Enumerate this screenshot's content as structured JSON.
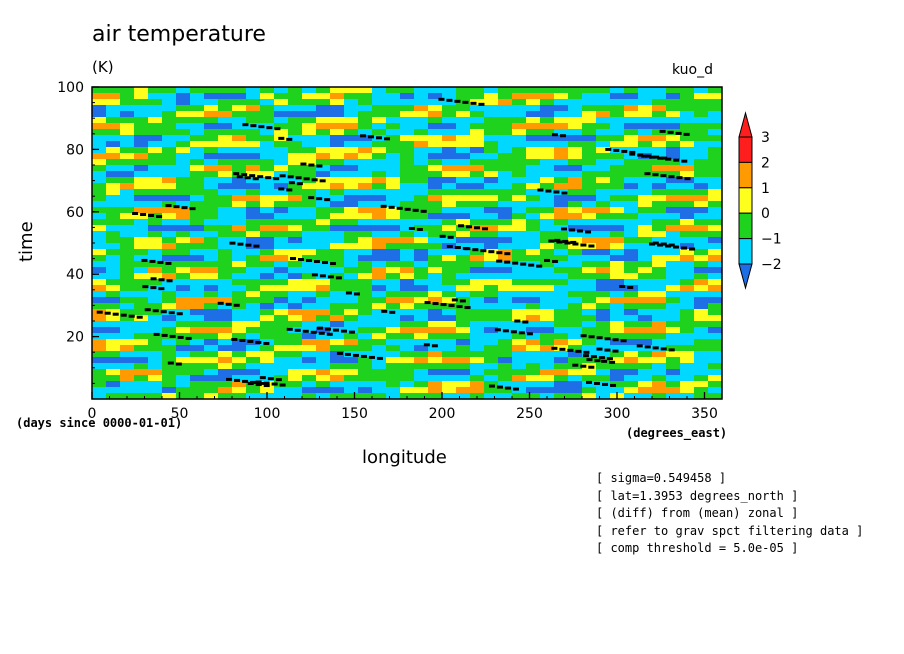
{
  "chart_data": {
    "type": "heatmap",
    "title": "air temperature",
    "units": "(K)",
    "run_label": "kuo_d",
    "xlabel": "longitude",
    "ylabel": "time",
    "x_units": "(degrees_east)",
    "time_units": "(days since 0000-01-01)",
    "xlim": [
      0,
      360
    ],
    "ylim": [
      0,
      100
    ],
    "x_ticks": [
      0,
      50,
      100,
      150,
      200,
      250,
      300,
      350
    ],
    "y_ticks": [
      20,
      40,
      60,
      80,
      100
    ],
    "colorbar": {
      "levels": [
        -2,
        -1,
        0,
        1,
        2,
        3
      ],
      "colors": [
        "#1e6ee6",
        "#00d8ff",
        "#1ed21e",
        "#ffff1e",
        "#ff9a00",
        "#ff1e1e"
      ]
    },
    "notes": [
      "[ sigma=0.549458 ]",
      "[ lat=1.3953 degrees_north ]",
      "[ (diff) from (mean) zonal ]",
      "[ refer to grav spct filtering data ]",
      "[ comp threshold = 5.0e-05 ]"
    ]
  }
}
